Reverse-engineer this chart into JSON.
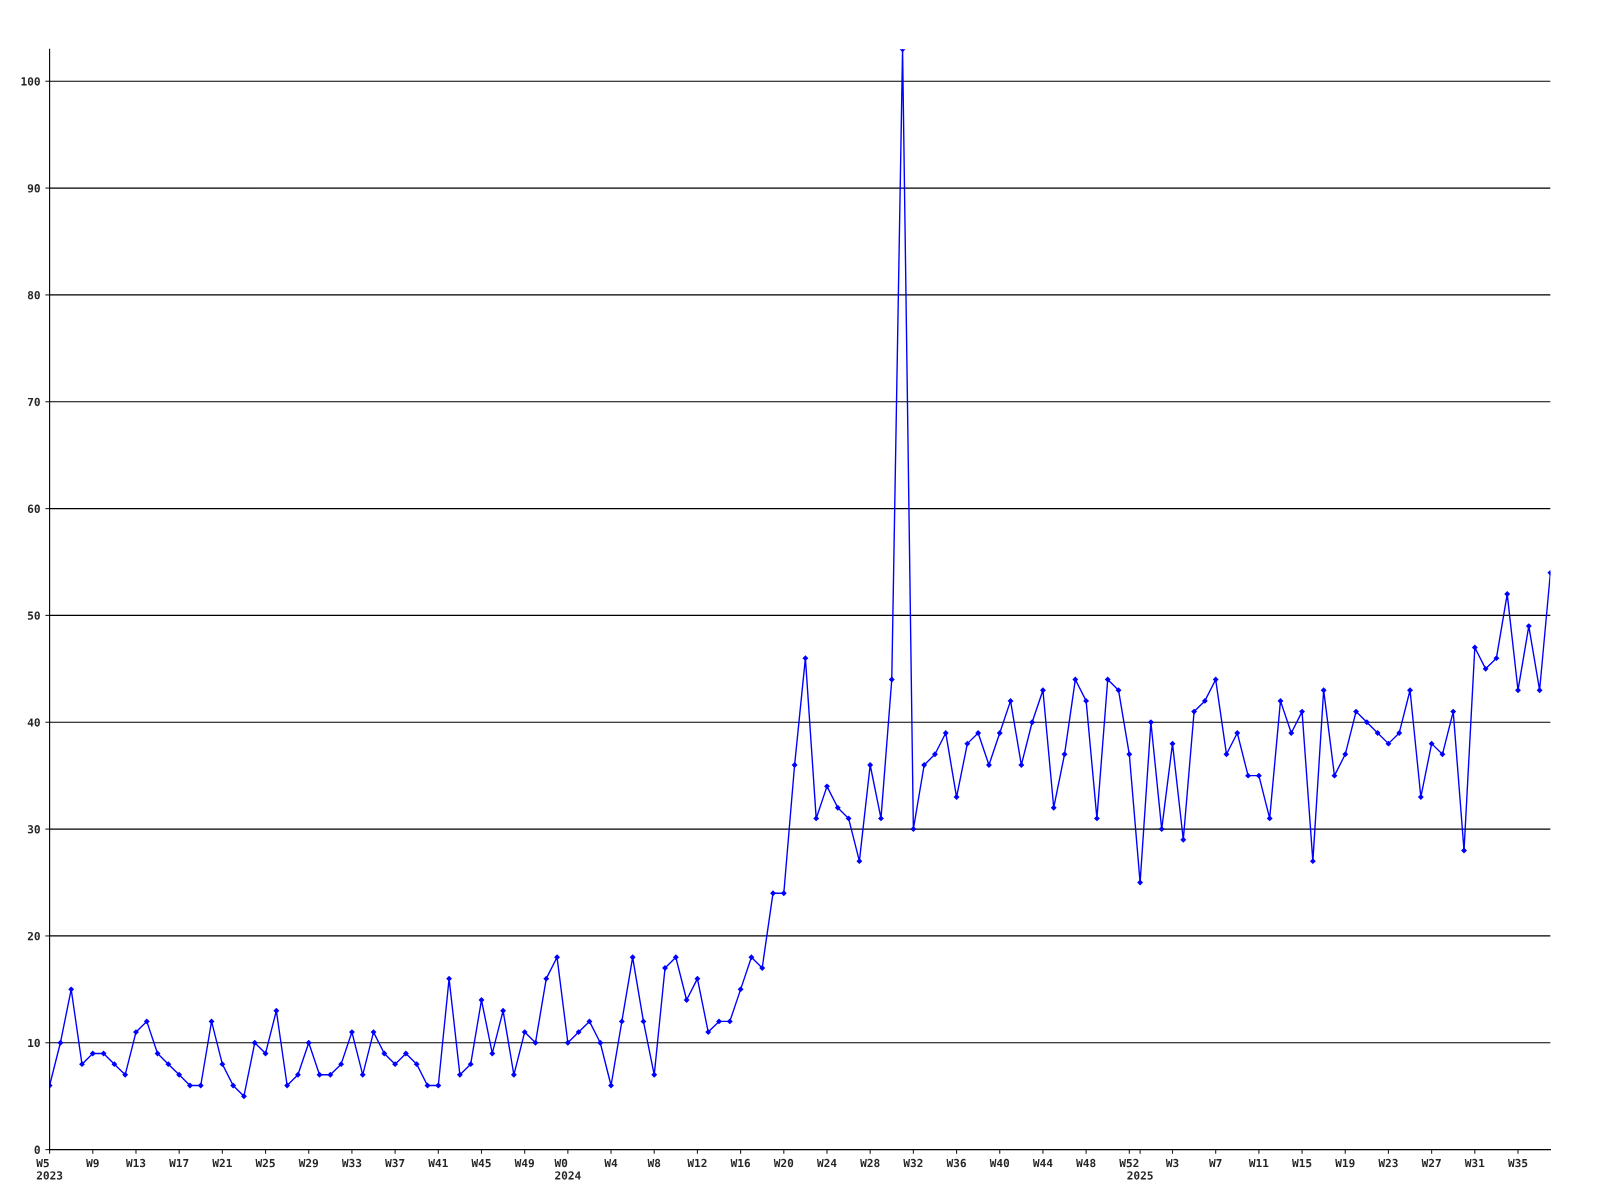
{
  "chart_data": {
    "type": "line",
    "categories": [
      "W5\n2023",
      null,
      null,
      null,
      "W9",
      null,
      null,
      null,
      "W13",
      null,
      null,
      null,
      "W17",
      null,
      null,
      null,
      "W21",
      null,
      null,
      null,
      "W25",
      null,
      null,
      null,
      "W29",
      null,
      null,
      null,
      "W33",
      null,
      null,
      null,
      "W37",
      null,
      null,
      null,
      "W41",
      null,
      null,
      null,
      "W45",
      null,
      null,
      null,
      "W49",
      null,
      null,
      null,
      "W0\n2024",
      null,
      null,
      null,
      "W4",
      null,
      null,
      null,
      "W8",
      null,
      null,
      null,
      "W12",
      null,
      null,
      null,
      "W16",
      null,
      null,
      null,
      "W20",
      null,
      null,
      null,
      "W24",
      null,
      null,
      null,
      "W28",
      null,
      null,
      null,
      "W32",
      null,
      null,
      null,
      "W36",
      null,
      null,
      null,
      "W40",
      null,
      null,
      null,
      "W44",
      null,
      null,
      null,
      "W48",
      null,
      null,
      null,
      "W52",
      "\n2025",
      null,
      null,
      "W3",
      null,
      null,
      null,
      "W7",
      null,
      null,
      null,
      "W11",
      null,
      null,
      null,
      "W15",
      null,
      null,
      null,
      "W19",
      null,
      null,
      null,
      "W23",
      null,
      null,
      null,
      "W27",
      null,
      null,
      null,
      "W31",
      null,
      null,
      null,
      "W35",
      null,
      null,
      null
    ],
    "series": [
      {
        "color": "#0000ff",
        "values": [
          6,
          10,
          15,
          8,
          9,
          9,
          8,
          7,
          11,
          12,
          9,
          8,
          7,
          6,
          6,
          12,
          8,
          6,
          5,
          10,
          9,
          13,
          6,
          7,
          10,
          7,
          7,
          8,
          11,
          7,
          11,
          9,
          8,
          9,
          8,
          6,
          6,
          16,
          7,
          8,
          14,
          9,
          13,
          7,
          11,
          10,
          16,
          18,
          10,
          11,
          12,
          10,
          6,
          12,
          18,
          12,
          7,
          17,
          18,
          14,
          16,
          11,
          12,
          12,
          15,
          18,
          17,
          24,
          24,
          36,
          46,
          31,
          34,
          32,
          31,
          27,
          36,
          31,
          44,
          103,
          30,
          36,
          37,
          39,
          33,
          38,
          39,
          36,
          39,
          42,
          36,
          40,
          43,
          32,
          37,
          44,
          42,
          31,
          44,
          43,
          37,
          25,
          40,
          30,
          38,
          29,
          41,
          42,
          44,
          37,
          39,
          35,
          35,
          31,
          42,
          39,
          41,
          27,
          43,
          35,
          37,
          41,
          40,
          39,
          38,
          39,
          43,
          33,
          38,
          37,
          41,
          28,
          47,
          45,
          46,
          52,
          43,
          49,
          43,
          54
        ]
      }
    ],
    "ylim": [
      0,
      103
    ],
    "yticks": [
      0,
      10,
      20,
      30,
      40,
      50,
      60,
      70,
      80,
      90,
      100
    ],
    "grid": "y",
    "marker": "diamond",
    "line_style": "solid"
  }
}
